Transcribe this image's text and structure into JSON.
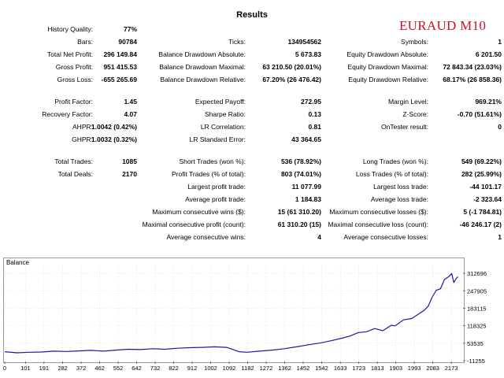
{
  "report": {
    "title": "Results",
    "pair_label": "EURAUD M10"
  },
  "stats": {
    "col1": [
      {
        "label": "History Quality:",
        "value": "77%"
      },
      {
        "label": "Bars:",
        "value": "90784"
      },
      {
        "label": "Total Net Profit:",
        "value": "296 149.84"
      },
      {
        "label": "Gross Profit:",
        "value": "951 415.53"
      },
      {
        "label": "Gross Loss:",
        "value": "-655 265.69"
      },
      {
        "label": "Profit Factor:",
        "value": "1.45"
      },
      {
        "label": "Recovery Factor:",
        "value": "4.07"
      },
      {
        "label": "AHPR:",
        "value": "1.0042 (0.42%)"
      },
      {
        "label": "GHPR:",
        "value": "1.0032 (0.32%)"
      },
      {
        "label": "Total Trades:",
        "value": "1085"
      },
      {
        "label": "Total Deals:",
        "value": "2170"
      }
    ],
    "col2": [
      {
        "label": "Ticks:",
        "value": "134954562"
      },
      {
        "label": "Balance Drawdown Absolute:",
        "value": "5 673.83"
      },
      {
        "label": "Balance Drawdown Maximal:",
        "value": "63 210.50 (20.01%)"
      },
      {
        "label": "Balance Drawdown Relative:",
        "value": "67.20% (26 476.42)"
      },
      {
        "label": "Expected Payoff:",
        "value": "272.95"
      },
      {
        "label": "Sharpe Ratio:",
        "value": "0.13"
      },
      {
        "label": "LR Correlation:",
        "value": "0.81"
      },
      {
        "label": "LR Standard Error:",
        "value": "43 364.65"
      },
      {
        "label": "Short Trades (won %):",
        "value": "536 (78.92%)"
      },
      {
        "label": "Profit Trades (% of total):",
        "value": "803 (74.01%)"
      },
      {
        "label": "Largest profit trade:",
        "value": "11 077.99"
      },
      {
        "label": "Average profit trade:",
        "value": "1 184.83"
      },
      {
        "label": "Maximum consecutive wins ($):",
        "value": "15 (61 310.20)"
      },
      {
        "label": "Maximal consecutive profit (count):",
        "value": "61 310.20 (15)"
      },
      {
        "label": "Average consecutive wins:",
        "value": "4"
      }
    ],
    "col3": [
      {
        "label": "Symbols:",
        "value": "1"
      },
      {
        "label": "Equity Drawdown Absolute:",
        "value": "6 201.50"
      },
      {
        "label": "Equity Drawdown Maximal:",
        "value": "72 843.34 (23.03%)"
      },
      {
        "label": "Equity Drawdown Relative:",
        "value": "68.17% (26 858.36)"
      },
      {
        "label": "Margin Level:",
        "value": "969.21%"
      },
      {
        "label": "Z-Score:",
        "value": "-0.70 (51.61%)"
      },
      {
        "label": "OnTester result:",
        "value": "0"
      },
      {
        "label": "Long Trades (won %):",
        "value": "549 (69.22%)"
      },
      {
        "label": "Loss Trades (% of total):",
        "value": "282 (25.99%)"
      },
      {
        "label": "Largest loss trade:",
        "value": "-44 101.17"
      },
      {
        "label": "Average loss trade:",
        "value": "-2 323.64"
      },
      {
        "label": "Maximum consecutive losses ($):",
        "value": "5 (-1 784.81)"
      },
      {
        "label": "Maximal consecutive loss (count):",
        "value": "-46 246.17 (2)"
      },
      {
        "label": "Average consecutive losses:",
        "value": "1"
      }
    ]
  },
  "chart_data": {
    "type": "line",
    "title": "Balance",
    "line_color": "#1a1aa6",
    "grid": true,
    "xlim": [
      0,
      2230
    ],
    "ylim": [
      -11255,
      345000
    ],
    "x_ticks": [
      "0",
      "101",
      "191",
      "282",
      "372",
      "462",
      "552",
      "642",
      "732",
      "822",
      "912",
      "1002",
      "1092",
      "1182",
      "1272",
      "1362",
      "1452",
      "1542",
      "1633",
      "1723",
      "1813",
      "1903",
      "1993",
      "2083",
      "2173"
    ],
    "y_ticks": [
      -11255,
      53535,
      118325,
      183115,
      247905,
      312696
    ],
    "series": [
      {
        "x": [
          0,
          60,
          120,
          180,
          240,
          300,
          360,
          420,
          480,
          540,
          600,
          660,
          720,
          780,
          840,
          900,
          960,
          1020,
          1080,
          1140,
          1180,
          1240,
          1300,
          1360,
          1420,
          1480,
          1540,
          1600,
          1640,
          1680,
          1720,
          1760,
          1800,
          1840,
          1880,
          1900,
          1940,
          1980,
          2010,
          2040,
          2060,
          2080,
          2100,
          2120,
          2140,
          2160,
          2175,
          2185,
          2195,
          2205
        ],
        "y": [
          22000,
          18000,
          20000,
          21000,
          24000,
          23000,
          25000,
          27000,
          24000,
          28000,
          31000,
          30000,
          33000,
          31000,
          35000,
          37000,
          38000,
          40000,
          38000,
          22000,
          20000,
          24000,
          28000,
          33000,
          40000,
          48000,
          55000,
          65000,
          72000,
          80000,
          93000,
          96000,
          108000,
          100000,
          120000,
          118000,
          140000,
          145000,
          160000,
          175000,
          190000,
          225000,
          250000,
          255000,
          290000,
          300000,
          312000,
          278000,
          292000,
          300000
        ]
      }
    ]
  }
}
